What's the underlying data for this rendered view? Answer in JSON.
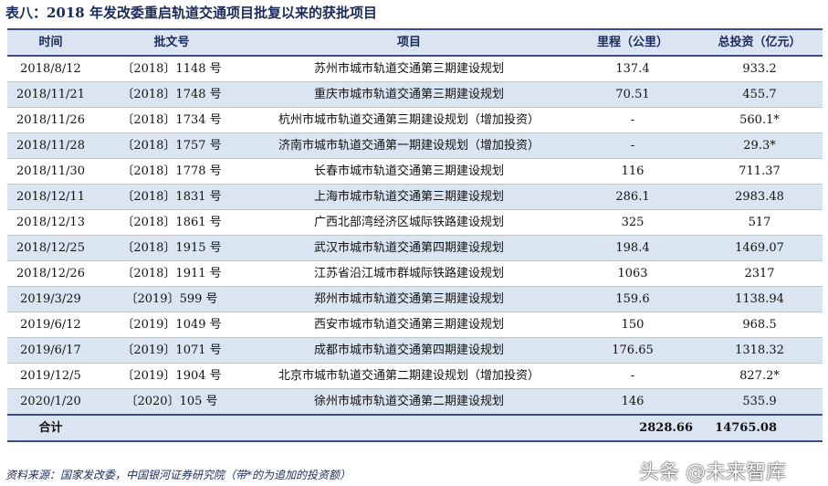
{
  "title": "表八：2018 年发改委重启轨道交通项目批复以来的获批项目",
  "headers": [
    "时间",
    "批文号",
    "项目",
    "里程（公里）",
    "总投资（亿元）"
  ],
  "rows": [
    [
      "2018/8/12",
      "〔2018〕1148 号",
      "苏州市城市轨道交通第三期建设规划",
      "137.4",
      "933.2"
    ],
    [
      "2018/11/21",
      "〔2018〕1748 号",
      "重庆市城市轨道交通第三期建设规划",
      "70.51",
      "455.7"
    ],
    [
      "2018/11/26",
      "〔2018〕1734 号",
      "杭州市城市轨道交通第三期建设规划（增加投资）",
      "-",
      "560.1*"
    ],
    [
      "2018/11/28",
      "〔2018〕1757 号",
      "济南市城市轨道交通第一期建设规划（增加投资）",
      "-",
      "29.3*"
    ],
    [
      "2018/11/30",
      "〔2018〕1778 号",
      "长春市城市轨道交通第三期建设规划",
      "116",
      "711.37"
    ],
    [
      "2018/12/11",
      "〔2018〕1831 号",
      "上海市城市轨道交通第三期建设规划",
      "286.1",
      "2983.48"
    ],
    [
      "2018/12/13",
      "〔2018〕1861 号",
      "广西北部湾经济区城际铁路建设规划",
      "325",
      "517"
    ],
    [
      "2018/12/25",
      "〔2018〕1915 号",
      "武汉市城市轨道交通第四期建设规划",
      "198.4",
      "1469.07"
    ],
    [
      "2018/12/26",
      "〔2018〕1911 号",
      "江苏省沿江城市群城际铁路建设规划",
      "1063",
      "2317"
    ],
    [
      "2019/3/29",
      "〔2019〕599 号",
      "郑州市城市轨道交通第三期建设规划",
      "159.6",
      "1138.94"
    ],
    [
      "2019/6/12",
      "〔2019〕1049 号",
      "西安市城市轨道交通第三期建设规划",
      "150",
      "968.5"
    ],
    [
      "2019/6/17",
      "〔2019〕1071 号",
      "成都市城市轨道交通第四期建设规划",
      "176.65",
      "1318.32"
    ],
    [
      "2019/12/5",
      "〔2019〕1904 号",
      "北京市城市轨道交通第二期建设规划（增加投资）",
      "-",
      "827.2*"
    ],
    [
      "2020/1/20",
      "〔2020〕105 号",
      "徐州市城市轨道交通第二期建设规划",
      "146",
      "535.9"
    ]
  ],
  "total": {
    "label": "合计",
    "mileage": "2828.66",
    "investment": "14765.08"
  },
  "footer": "资料来源：国家发改委，中国银河证券研究院（带*的为追加的投资额）",
  "watermark": "头条 @未来智库"
}
